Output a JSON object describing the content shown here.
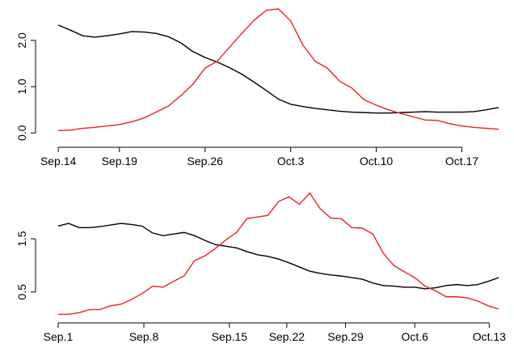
{
  "chart_data": [
    {
      "type": "line",
      "x": [
        0,
        1,
        2,
        3,
        4,
        5,
        6,
        7,
        8,
        9,
        10,
        11,
        12,
        13,
        14,
        15,
        16,
        17,
        18,
        19,
        20,
        21,
        22,
        23,
        24,
        25,
        26,
        27,
        28,
        29,
        30,
        31,
        32,
        33,
        34,
        35,
        36
      ],
      "series": [
        {
          "color": "#000000",
          "values": [
            2.33,
            2.22,
            2.1,
            2.07,
            2.1,
            2.14,
            2.19,
            2.18,
            2.15,
            2.08,
            1.95,
            1.76,
            1.63,
            1.53,
            1.41,
            1.27,
            1.1,
            0.92,
            0.73,
            0.62,
            0.57,
            0.53,
            0.5,
            0.47,
            0.45,
            0.44,
            0.43,
            0.43,
            0.44,
            0.45,
            0.46,
            0.45,
            0.45,
            0.45,
            0.46,
            0.5,
            0.55
          ]
        },
        {
          "color": "#ee2222",
          "values": [
            0.05,
            0.06,
            0.1,
            0.12,
            0.15,
            0.18,
            0.24,
            0.32,
            0.45,
            0.58,
            0.8,
            1.05,
            1.4,
            1.55,
            1.85,
            2.15,
            2.43,
            2.65,
            2.68,
            2.42,
            1.9,
            1.55,
            1.4,
            1.12,
            0.97,
            0.72,
            0.6,
            0.5,
            0.42,
            0.35,
            0.28,
            0.27,
            0.2,
            0.15,
            0.12,
            0.1,
            0.08
          ]
        }
      ],
      "xlim": [
        -1,
        37
      ],
      "ylim": [
        -0.1,
        2.75
      ],
      "xticks": [
        {
          "value": 0,
          "label": "Sep.14"
        },
        {
          "value": 5,
          "label": "Sep.19"
        },
        {
          "value": 12,
          "label": "Sep.26"
        },
        {
          "value": 19,
          "label": "Oct.3"
        },
        {
          "value": 26,
          "label": "Oct.10"
        },
        {
          "value": 33,
          "label": "Oct.17"
        }
      ],
      "yticks": [
        {
          "value": 0,
          "label": "0.0"
        },
        {
          "value": 1,
          "label": "1.0"
        },
        {
          "value": 2,
          "label": "2.0"
        }
      ]
    },
    {
      "type": "line",
      "x": [
        0,
        1,
        2,
        3,
        4,
        5,
        6,
        7,
        8,
        9,
        10,
        11,
        12,
        13,
        14,
        15,
        16,
        17,
        18,
        19,
        20,
        21,
        22,
        23,
        24,
        25,
        26,
        27,
        28,
        29,
        30,
        31,
        32,
        33,
        34,
        35,
        36,
        37,
        38,
        39,
        40,
        41,
        42
      ],
      "series": [
        {
          "color": "#000000",
          "values": [
            1.74,
            1.79,
            1.71,
            1.71,
            1.73,
            1.76,
            1.79,
            1.77,
            1.74,
            1.61,
            1.56,
            1.59,
            1.62,
            1.56,
            1.47,
            1.39,
            1.36,
            1.33,
            1.26,
            1.2,
            1.17,
            1.12,
            1.05,
            0.97,
            0.89,
            0.85,
            0.82,
            0.8,
            0.77,
            0.74,
            0.67,
            0.62,
            0.61,
            0.59,
            0.59,
            0.56,
            0.58,
            0.62,
            0.64,
            0.62,
            0.64,
            0.7,
            0.77
          ]
        },
        {
          "color": "#ee2222",
          "values": [
            0.08,
            0.08,
            0.11,
            0.17,
            0.17,
            0.24,
            0.27,
            0.36,
            0.47,
            0.61,
            0.59,
            0.7,
            0.8,
            1.09,
            1.18,
            1.32,
            1.48,
            1.62,
            1.88,
            1.91,
            1.94,
            2.2,
            2.29,
            2.15,
            2.36,
            2.06,
            1.89,
            1.88,
            1.71,
            1.7,
            1.59,
            1.23,
            1.0,
            0.88,
            0.77,
            0.61,
            0.52,
            0.41,
            0.41,
            0.39,
            0.33,
            0.24,
            0.18
          ]
        }
      ],
      "xlim": [
        -1,
        43
      ],
      "ylim": [
        -0.02,
        2.4
      ],
      "xticks": [
        {
          "value": 0,
          "label": "Sep.1"
        },
        {
          "value": 8.17,
          "label": "Sep.8"
        },
        {
          "value": 16.33,
          "label": "Sep.15"
        },
        {
          "value": 21.8,
          "label": "Sep.22"
        },
        {
          "value": 27.4,
          "label": "Sep.29"
        },
        {
          "value": 34,
          "label": "Oct.6"
        },
        {
          "value": 41.1,
          "label": "Oct.13"
        }
      ],
      "yticks": [
        0.5,
        1.5
      ]
    }
  ]
}
